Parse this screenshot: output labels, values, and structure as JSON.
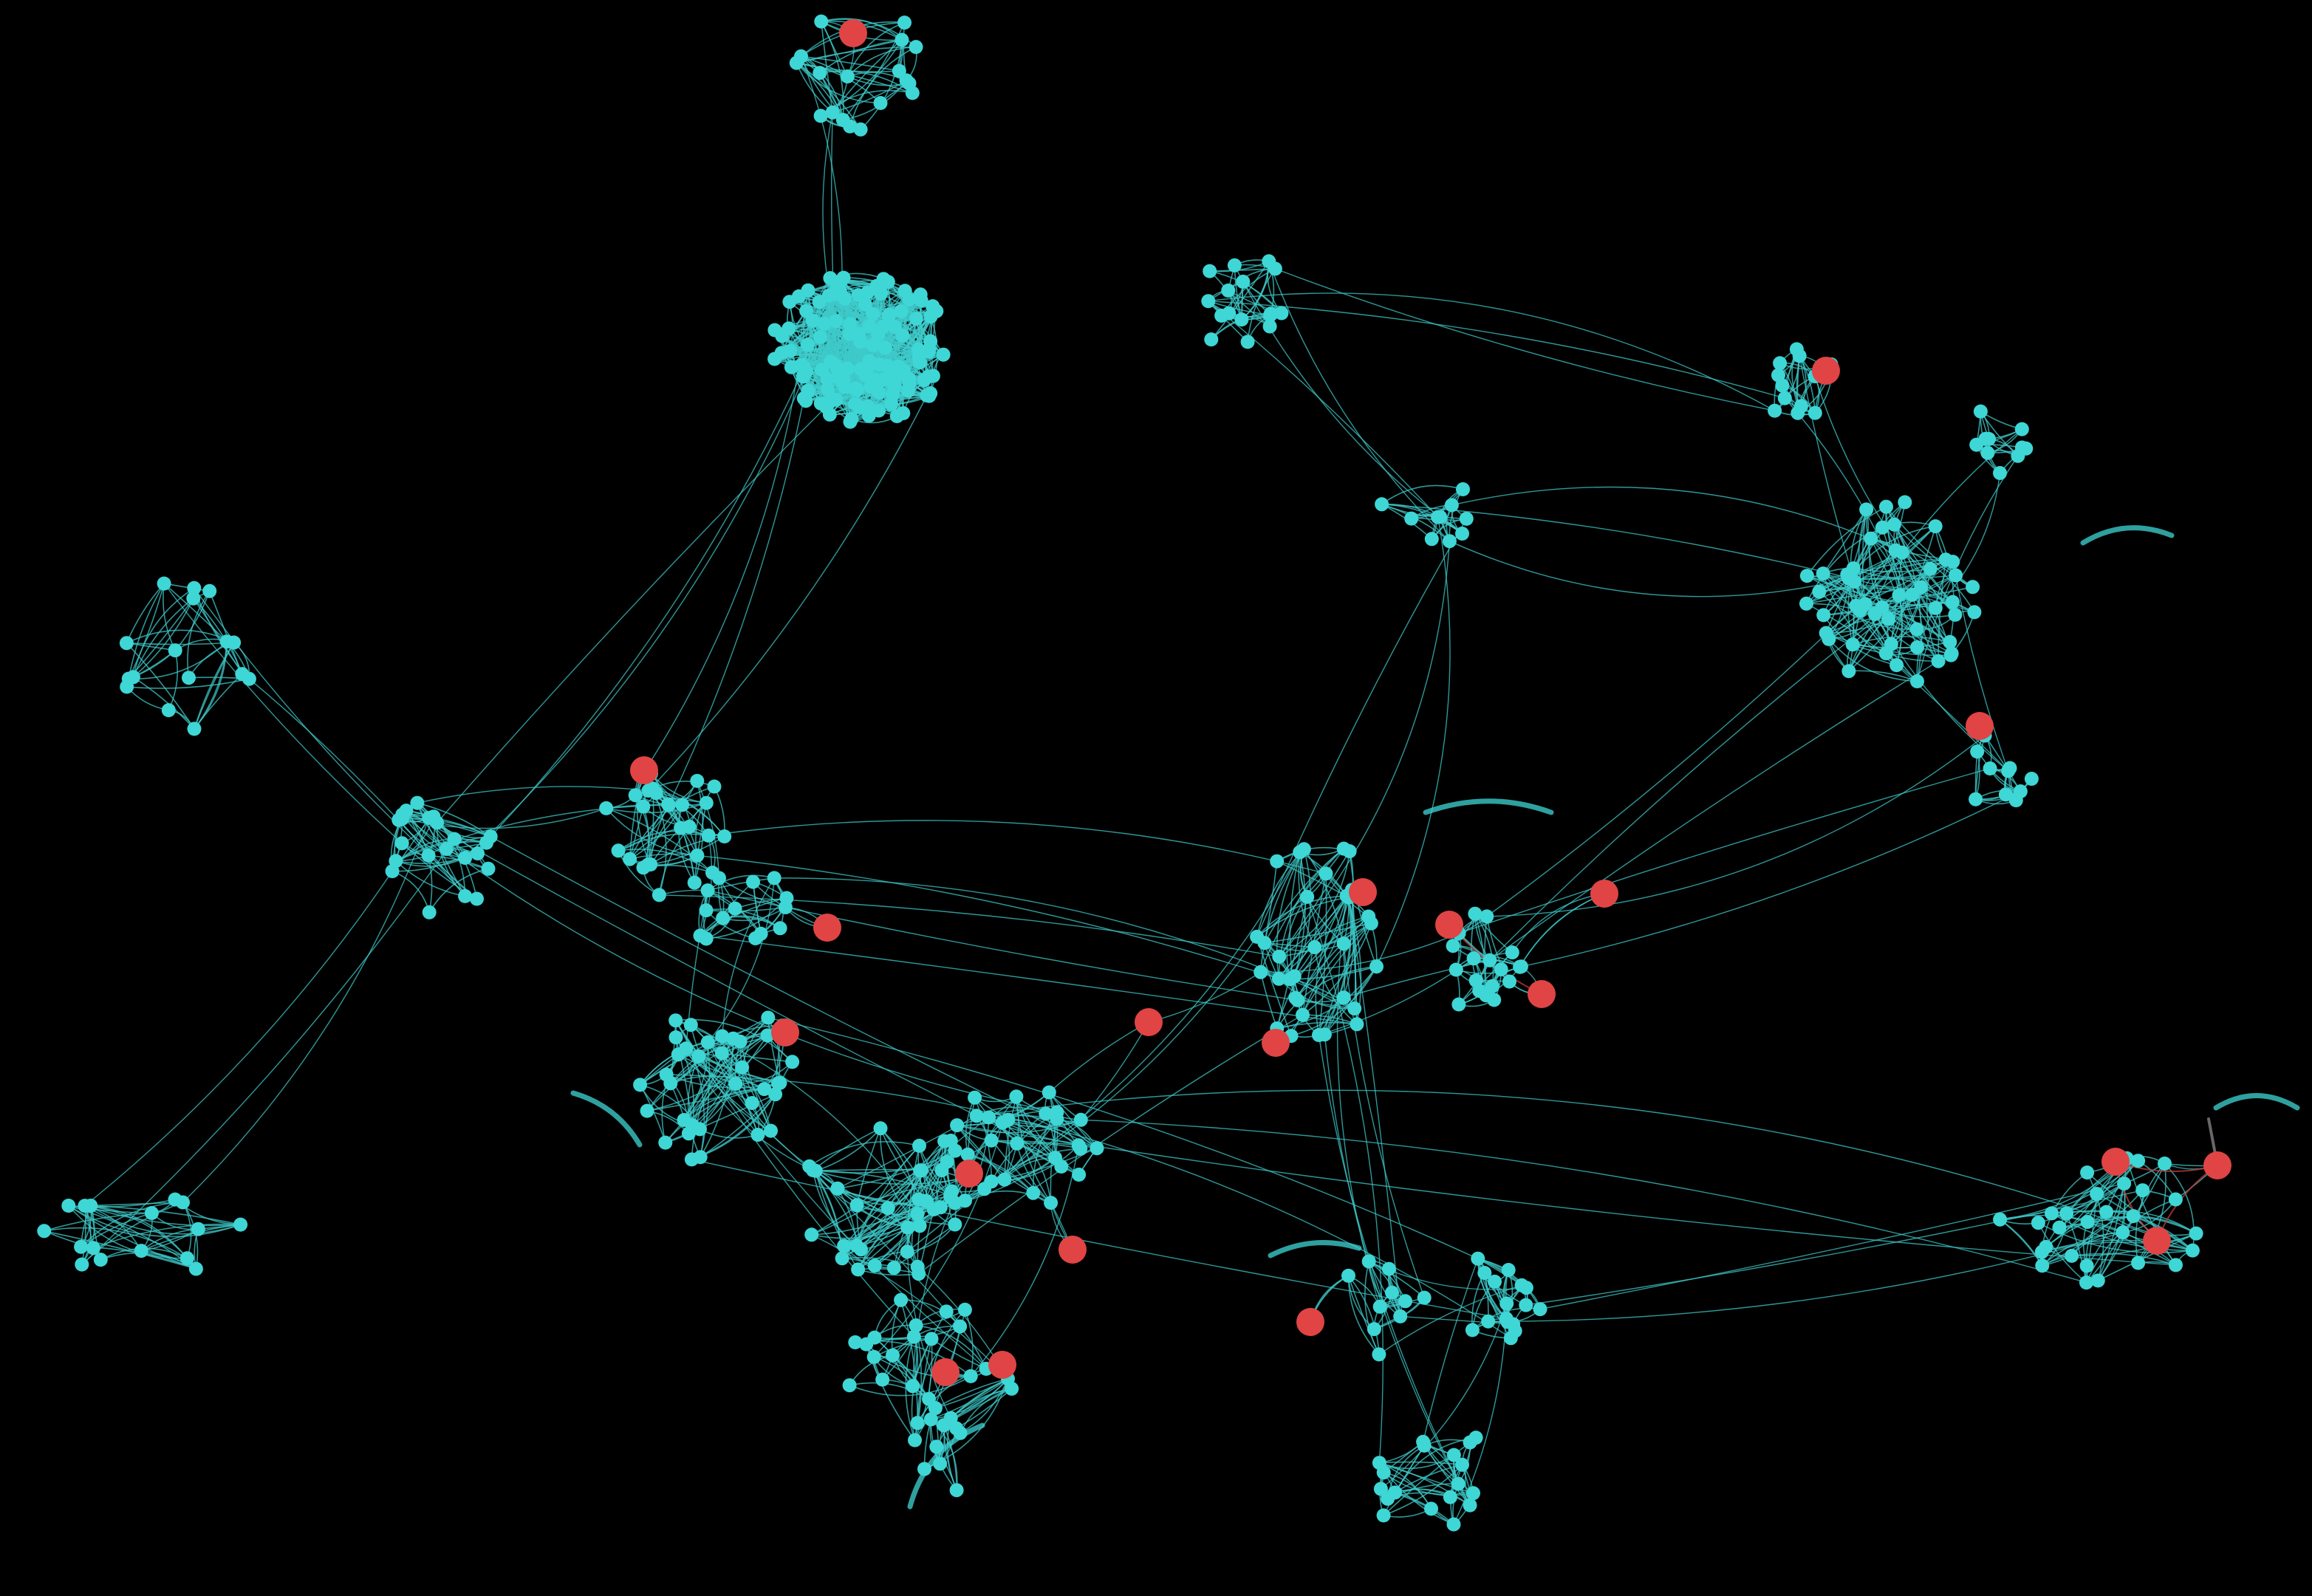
{
  "colors": {
    "background": "#000000",
    "node_primary": "#3fd6d6",
    "node_highlight": "#e04444",
    "edge_primary": "#3fc9c9",
    "edge_highlight": "#c23c3c",
    "edge_gray": "#8a8a8a"
  },
  "legend": [],
  "graph": {
    "node_categories": [
      "primary",
      "highlight"
    ],
    "highlight_node_count": 20
  }
}
